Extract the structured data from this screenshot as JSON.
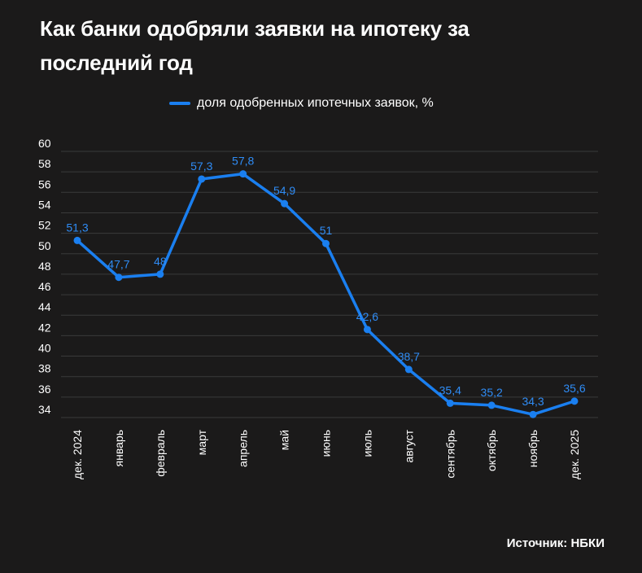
{
  "title": "Как банки одобряли заявки на ипотеку за последний год",
  "source": "Источник: НБКИ",
  "colors": {
    "background": "#1b1a1a",
    "line": "#1a7ff0",
    "label": "#2f8cf5",
    "grid": "#3a3a3a",
    "text": "#ffffff"
  },
  "chart_data": {
    "type": "line",
    "categories": [
      "дек. 2024",
      "январь",
      "февраль",
      "март",
      "апрель",
      "май",
      "июнь",
      "июль",
      "август",
      "сентябрь",
      "октябрь",
      "ноябрь",
      "дек. 2025"
    ],
    "series": [
      {
        "name": "доля одобренных ипотечных заявок, %",
        "values": [
          51.3,
          47.7,
          48,
          57.3,
          57.8,
          54.9,
          51,
          42.6,
          38.7,
          35.4,
          35.2,
          34.3,
          35.6
        ],
        "labels": [
          "51,3",
          "47,7",
          "48",
          "57,3",
          "57,8",
          "54,9",
          "51",
          "42,6",
          "38,7",
          "35,4",
          "35,2",
          "34,3",
          "35,6"
        ]
      }
    ],
    "ylim": [
      34,
      60
    ],
    "yticks": [
      34,
      36,
      38,
      40,
      42,
      44,
      46,
      48,
      50,
      52,
      54,
      56,
      58,
      60
    ],
    "grid": true,
    "legend": "top-center",
    "xlabel": "",
    "ylabel": ""
  }
}
